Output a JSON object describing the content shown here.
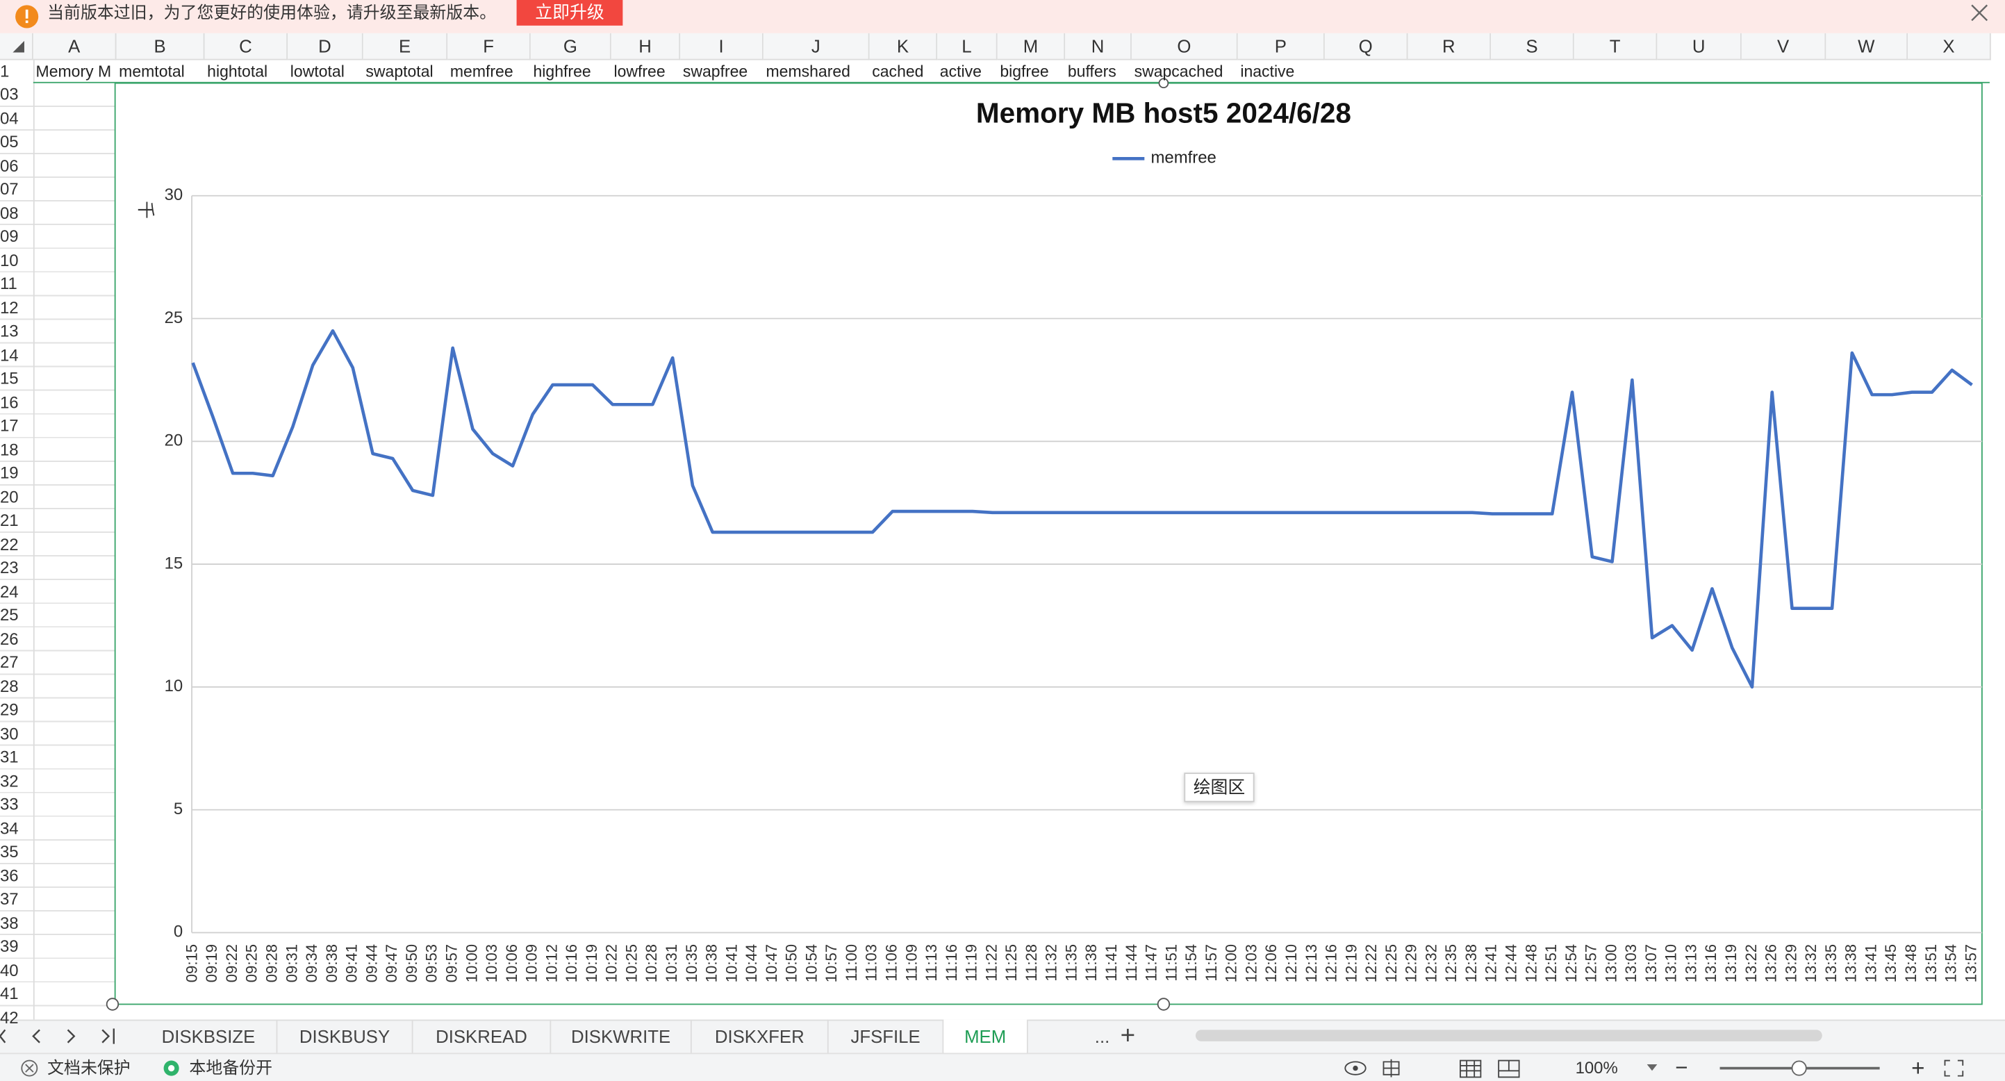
{
  "notice": {
    "text": "当前版本过旧，为了您更好的使用体验，请升级至最新版本。",
    "button": "立即升级"
  },
  "columns": [
    "A",
    "B",
    "C",
    "D",
    "E",
    "F",
    "G",
    "H",
    "I",
    "J",
    "K",
    "L",
    "M",
    "N",
    "O",
    "P",
    "Q",
    "R",
    "S",
    "T",
    "U",
    "V",
    "W",
    "X"
  ],
  "row1_number": "1",
  "row1": [
    "Memory M",
    "memtotal",
    "hightotal",
    "lowtotal",
    "swaptotal",
    "memfree",
    "highfree",
    "lowfree",
    "swapfree",
    "memshared",
    "cached",
    "active",
    "bigfree",
    "buffers",
    "swapcached",
    "inactive"
  ],
  "row_numbers": [
    "03",
    "04",
    "05",
    "06",
    "07",
    "08",
    "09",
    "10",
    "11",
    "12",
    "13",
    "14",
    "15",
    "16",
    "17",
    "18",
    "19",
    "20",
    "21",
    "22",
    "23",
    "24",
    "25",
    "26",
    "27",
    "28",
    "29",
    "30",
    "31",
    "32",
    "33",
    "34",
    "35",
    "36",
    "37",
    "38",
    "39",
    "40",
    "41",
    "42"
  ],
  "chart_data": {
    "type": "line",
    "title": "Memory MB host5  2024/6/28",
    "y_unit_label": "千",
    "legend_position": "top",
    "grid": true,
    "categories": [
      "09:15",
      "09:19",
      "09:22",
      "09:25",
      "09:28",
      "09:31",
      "09:34",
      "09:38",
      "09:41",
      "09:44",
      "09:47",
      "09:50",
      "09:53",
      "09:57",
      "10:00",
      "10:03",
      "10:06",
      "10:09",
      "10:12",
      "10:16",
      "10:19",
      "10:22",
      "10:25",
      "10:28",
      "10:31",
      "10:35",
      "10:38",
      "10:41",
      "10:44",
      "10:47",
      "10:50",
      "10:54",
      "10:57",
      "11:00",
      "11:03",
      "11:06",
      "11:09",
      "11:13",
      "11:16",
      "11:19",
      "11:22",
      "11:25",
      "11:28",
      "11:32",
      "11:35",
      "11:38",
      "11:41",
      "11:44",
      "11:47",
      "11:51",
      "11:54",
      "11:57",
      "12:00",
      "12:03",
      "12:06",
      "12:10",
      "12:13",
      "12:16",
      "12:19",
      "12:22",
      "12:25",
      "12:29",
      "12:32",
      "12:35",
      "12:38",
      "12:41",
      "12:44",
      "12:48",
      "12:51",
      "12:54",
      "12:57",
      "13:00",
      "13:03",
      "13:07",
      "13:10",
      "13:13",
      "13:16",
      "13:19",
      "13:22",
      "13:26",
      "13:29",
      "13:32",
      "13:35",
      "13:38",
      "13:41",
      "13:45",
      "13:48",
      "13:51",
      "13:54",
      "13:57"
    ],
    "series": [
      {
        "name": "memfree",
        "color": "#4472c4",
        "values": [
          23.2,
          21.0,
          18.7,
          18.7,
          18.6,
          20.6,
          23.1,
          24.5,
          23.0,
          19.5,
          19.3,
          18.0,
          17.8,
          23.8,
          20.5,
          19.5,
          19.0,
          21.1,
          22.3,
          22.3,
          22.3,
          21.5,
          21.5,
          21.5,
          23.4,
          18.2,
          16.3,
          16.3,
          16.3,
          16.3,
          16.3,
          16.3,
          16.3,
          16.3,
          16.3,
          17.15,
          17.15,
          17.15,
          17.15,
          17.15,
          17.1,
          17.1,
          17.1,
          17.1,
          17.1,
          17.1,
          17.1,
          17.1,
          17.1,
          17.1,
          17.1,
          17.1,
          17.1,
          17.1,
          17.1,
          17.1,
          17.1,
          17.1,
          17.1,
          17.1,
          17.1,
          17.1,
          17.1,
          17.1,
          17.1,
          17.05,
          17.05,
          17.05,
          17.05,
          22.0,
          15.3,
          15.1,
          22.5,
          12.0,
          12.5,
          11.5,
          14.0,
          11.6,
          10.0,
          22.0,
          13.2,
          13.2,
          13.2,
          23.6,
          21.9,
          21.9,
          22.0,
          22.0,
          22.9,
          22.3
        ]
      }
    ],
    "ylim": [
      0,
      30
    ],
    "yticks": [
      0,
      5,
      10,
      15,
      20,
      25,
      30
    ]
  },
  "tooltip": "绘图区",
  "sheet_tabs": [
    "DISKBSIZE",
    "DISKBUSY",
    "DISKREAD",
    "DISKWRITE",
    "DISKXFER",
    "JFSFILE",
    "MEM"
  ],
  "more_tabs": "...",
  "add_tab": "+",
  "status": [
    "文档未保护",
    "本地备份开"
  ],
  "zoom": "100%",
  "zoom_minus": "−",
  "zoom_plus": "+"
}
